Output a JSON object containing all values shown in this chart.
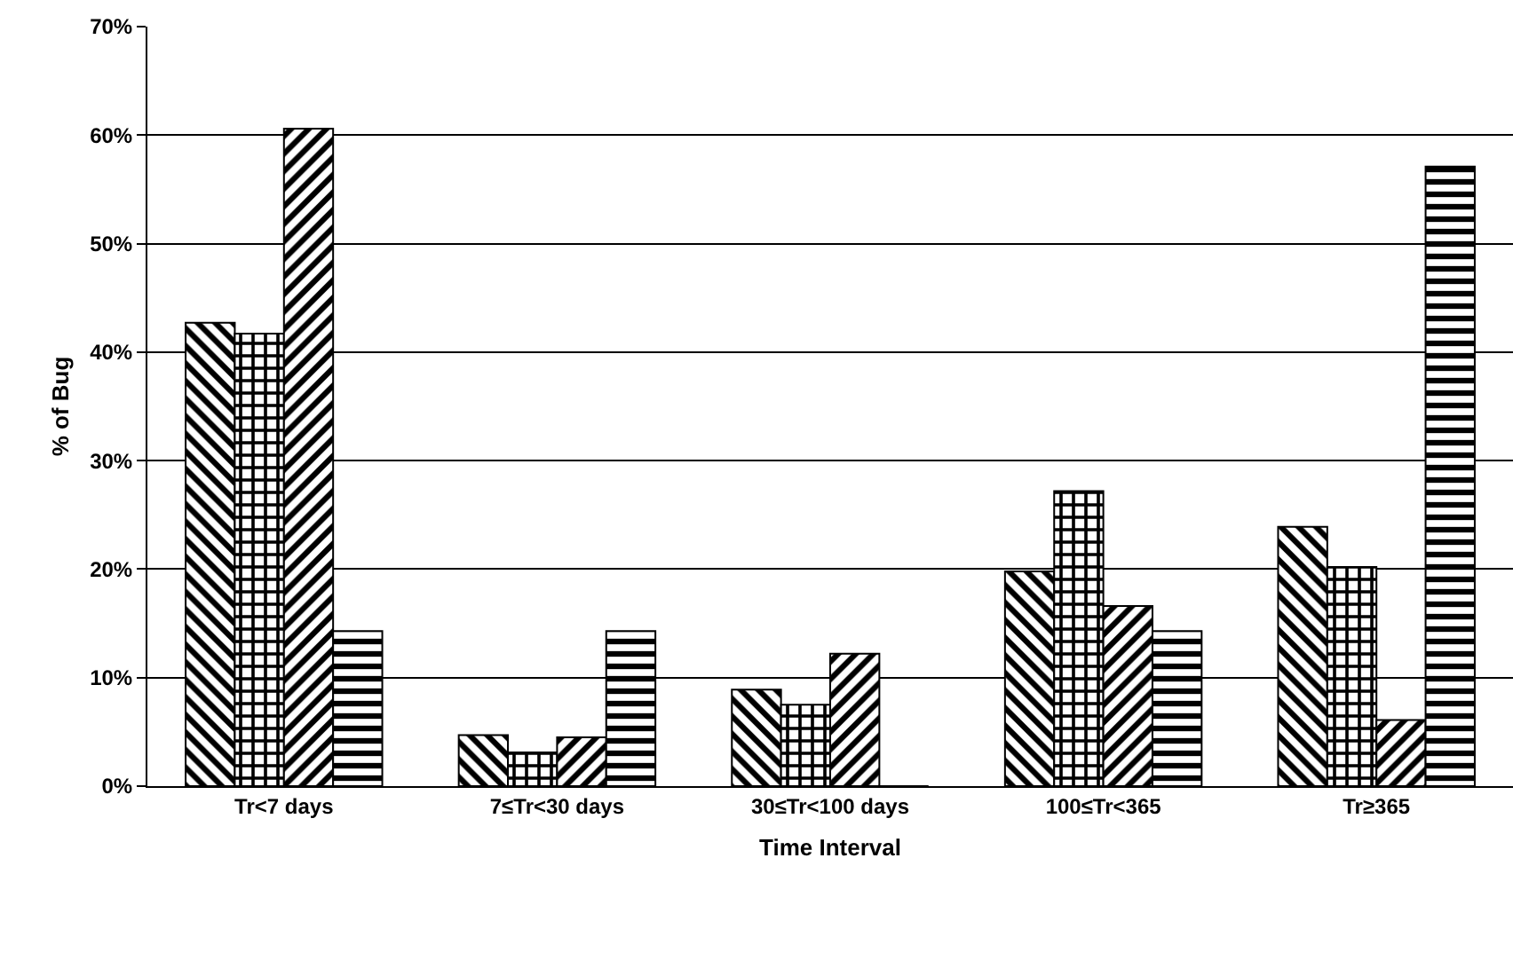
{
  "chart_data": {
    "type": "bar",
    "xlabel": "Time Interval",
    "ylabel": "% of Bug",
    "categories": [
      "Tr<7 days",
      "7≤Tr<30 days",
      "30≤Tr<100 days",
      "100≤Tr<365",
      "Tr≥365"
    ],
    "series": [
      {
        "color": "#000000",
        "values": [
          42.7,
          4.7,
          8.9,
          19.8,
          23.9
        ]
      },
      {
        "color": "#000000",
        "values": [
          41.7,
          3.1,
          7.5,
          27.2,
          20.2
        ]
      },
      {
        "color": "#000000",
        "values": [
          60.6,
          4.5,
          12.2,
          16.6,
          6.1
        ]
      },
      {
        "color": "#000000",
        "values": [
          14.3,
          14.3,
          0,
          14.3,
          57.1
        ]
      }
    ],
    "ylim": [
      0,
      70
    ],
    "yticks": [
      {
        "value": 0,
        "label": "0%"
      },
      {
        "value": 10,
        "label": "10%"
      },
      {
        "value": 20,
        "label": "20%"
      },
      {
        "value": 30,
        "label": "30%"
      },
      {
        "value": 40,
        "label": "40%"
      },
      {
        "value": 50,
        "label": "50%"
      },
      {
        "value": 60,
        "label": "60%"
      },
      {
        "value": 70,
        "label": "70%"
      }
    ],
    "grid": "y"
  }
}
